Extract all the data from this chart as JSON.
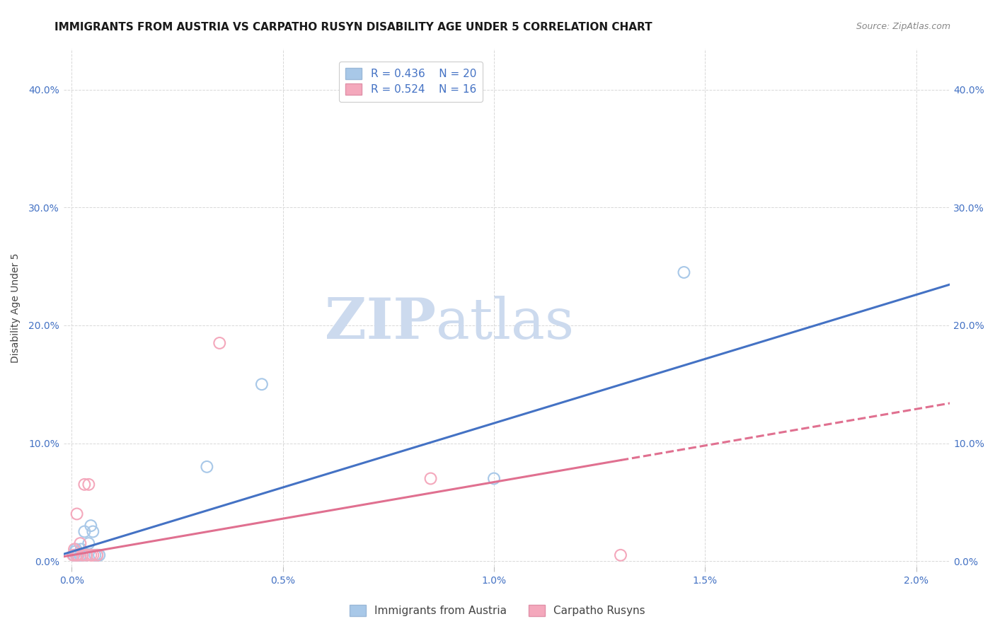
{
  "title": "IMMIGRANTS FROM AUSTRIA VS CARPATHO RUSYN DISABILITY AGE UNDER 5 CORRELATION CHART",
  "source": "Source: ZipAtlas.com",
  "ylabel_label": "Disability Age Under 5",
  "x_tick_labels": [
    "0.0%",
    "0.5%",
    "1.0%",
    "1.5%",
    "2.0%"
  ],
  "x_tick_values": [
    0.0,
    0.005,
    0.01,
    0.015,
    0.02
  ],
  "y_tick_labels": [
    "0.0%",
    "10.0%",
    "20.0%",
    "30.0%",
    "40.0%"
  ],
  "y_tick_values": [
    0.0,
    0.1,
    0.2,
    0.3,
    0.4
  ],
  "xlim": [
    -0.0002,
    0.0208
  ],
  "ylim": [
    -0.005,
    0.435
  ],
  "austria_x": [
    5e-05,
    8e-05,
    0.0001,
    0.00012,
    0.00015,
    0.0002,
    0.00022,
    0.00025,
    0.0003,
    0.00035,
    0.0004,
    0.00045,
    0.0005,
    0.00055,
    0.0006,
    0.00065,
    0.0032,
    0.0045,
    0.01,
    0.0145
  ],
  "austria_y": [
    0.005,
    0.008,
    0.01,
    0.005,
    0.005,
    0.005,
    0.01,
    0.005,
    0.025,
    0.005,
    0.015,
    0.03,
    0.025,
    0.005,
    0.005,
    0.005,
    0.08,
    0.15,
    0.07,
    0.245
  ],
  "rusyn_x": [
    3e-05,
    6e-05,
    0.0001,
    0.00012,
    0.00015,
    0.0002,
    0.00025,
    0.0003,
    0.00035,
    0.0004,
    0.00045,
    0.0005,
    0.0006,
    0.0035,
    0.0085,
    0.013
  ],
  "rusyn_y": [
    0.005,
    0.01,
    0.005,
    0.04,
    0.005,
    0.015,
    0.005,
    0.065,
    0.005,
    0.065,
    0.005,
    0.005,
    0.005,
    0.185,
    0.07,
    0.005
  ],
  "austria_R": 0.436,
  "austria_N": 20,
  "rusyn_R": 0.524,
  "rusyn_N": 16,
  "austria_line_slope": 10.9,
  "austria_line_intercept": 0.008,
  "rusyn_line_slope": 6.2,
  "rusyn_line_intercept": 0.005,
  "austria_color": "#a8c8e8",
  "rusyn_color": "#f4a8bc",
  "austria_line_color": "#4472c4",
  "rusyn_line_color": "#e07090",
  "background_color": "#ffffff",
  "grid_color": "#d8d8d8",
  "watermark_zip": "ZIP",
  "watermark_atlas": "atlas",
  "watermark_color": "#ccdaee",
  "title_fontsize": 11,
  "legend_fontsize": 11,
  "axis_label_fontsize": 10,
  "tick_fontsize": 10,
  "source_fontsize": 9
}
